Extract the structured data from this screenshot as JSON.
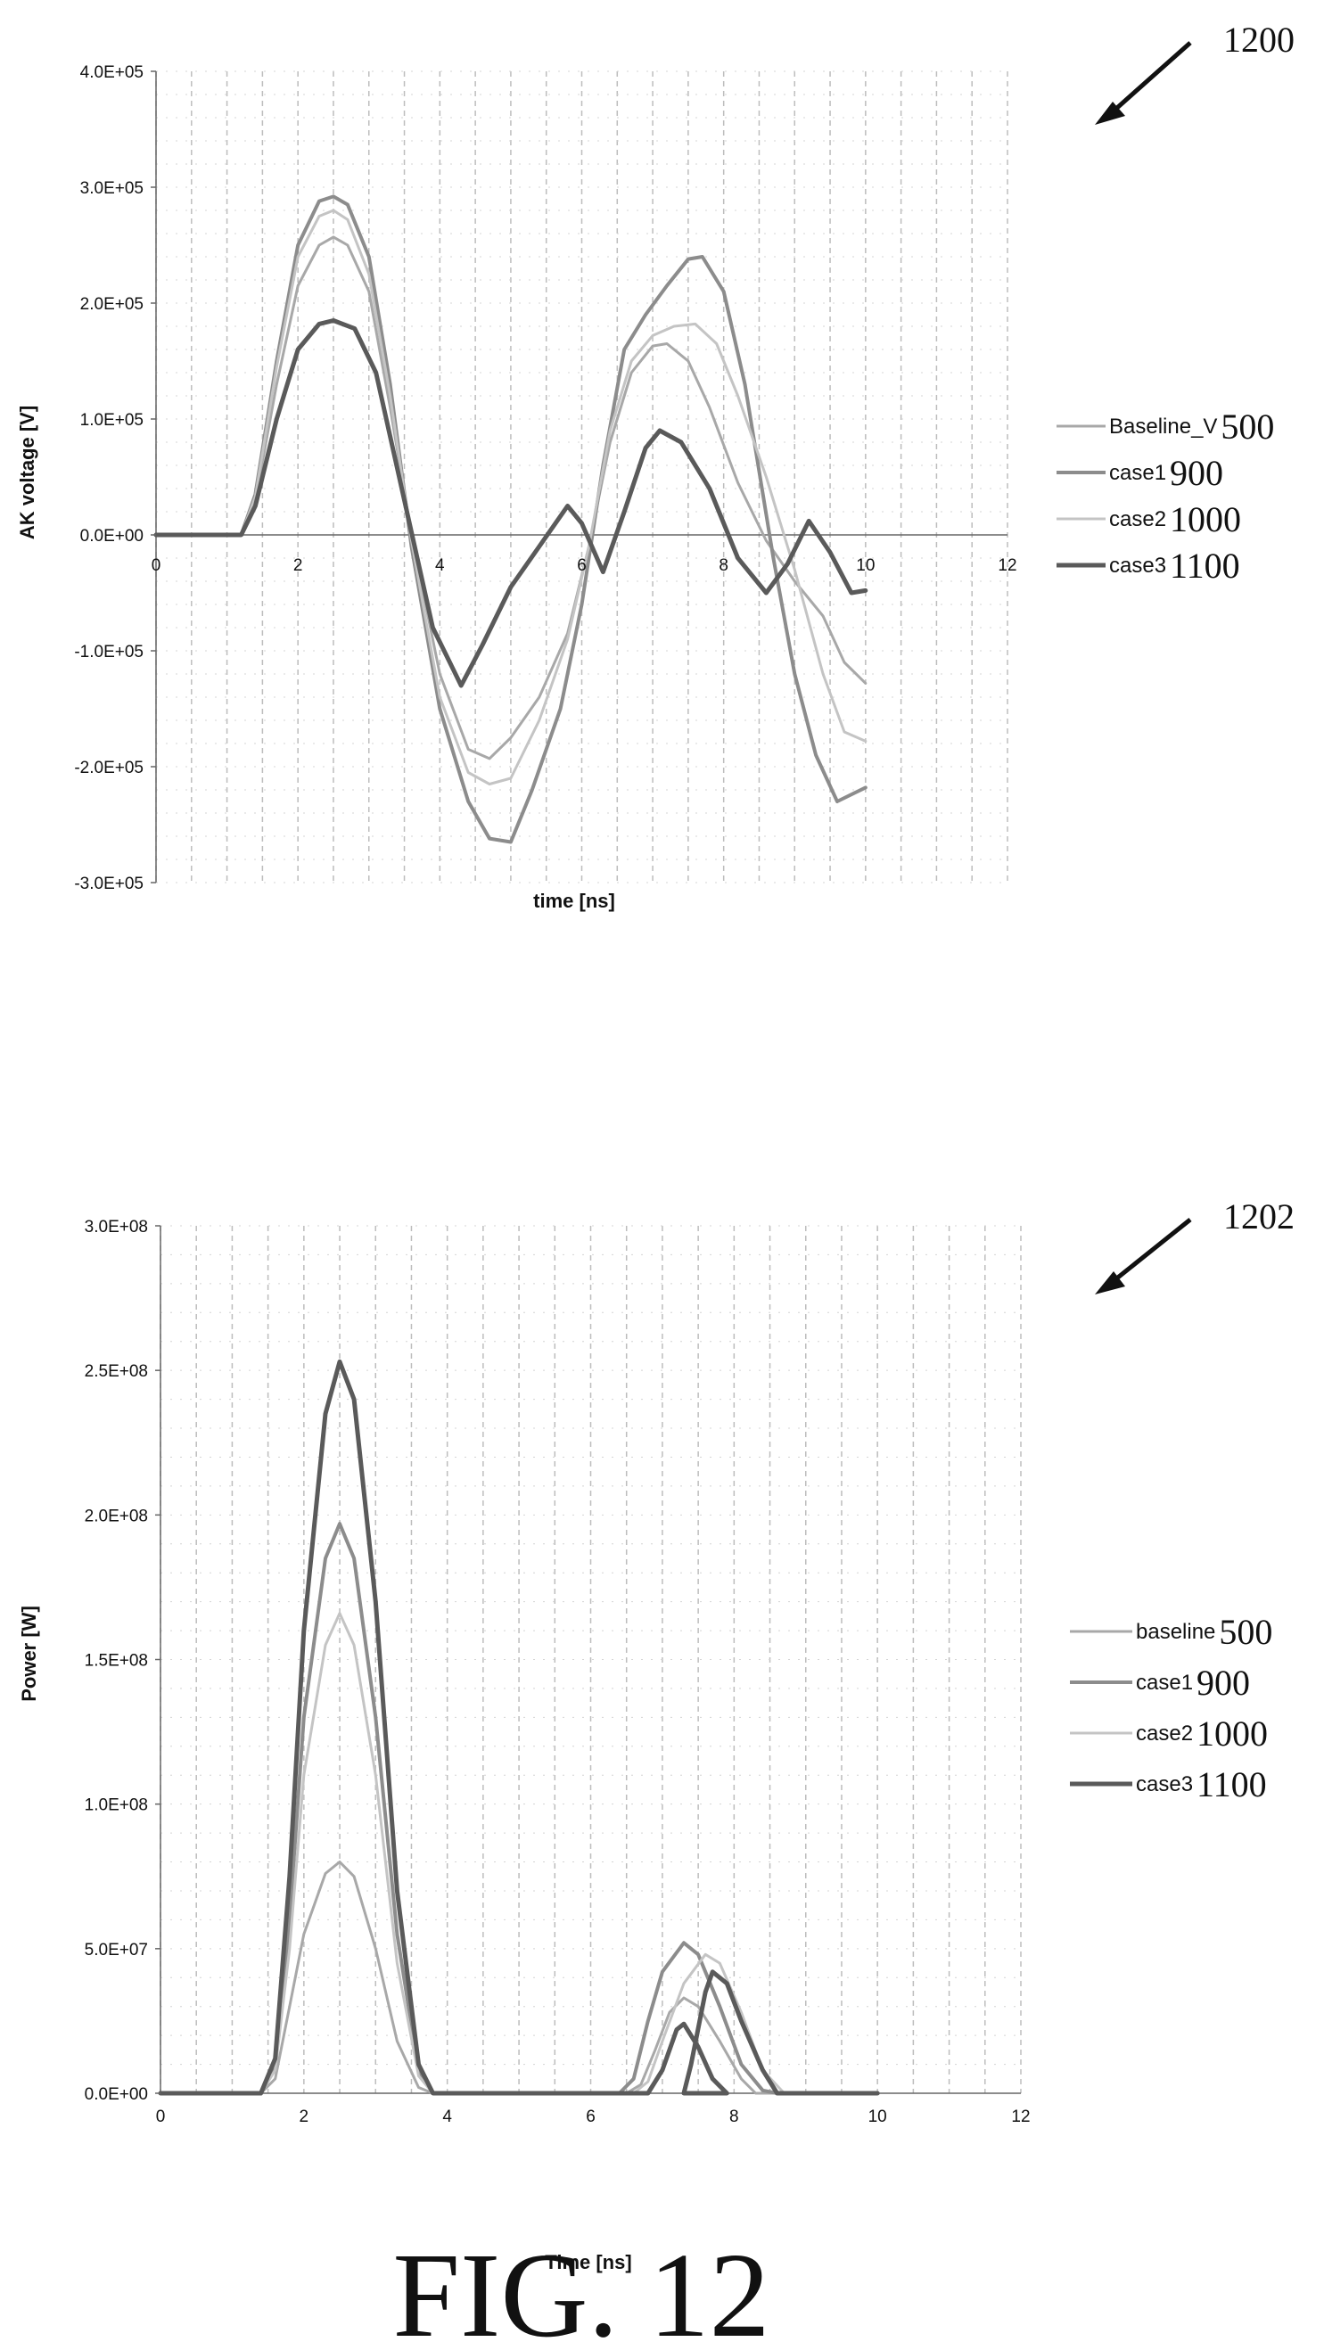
{
  "figure_label": "FIG. 12",
  "chart_data": [
    {
      "id": "top",
      "ref_number": "1200",
      "type": "line",
      "xlabel": "time [ns]",
      "ylabel": "AK voltage [V]",
      "xlim": [
        0,
        12
      ],
      "ylim": [
        -300000,
        400000
      ],
      "xticks": [
        0,
        2,
        4,
        6,
        8,
        10,
        12
      ],
      "xtick_labels": [
        "0",
        "2",
        "4",
        "6",
        "8",
        "10",
        "12"
      ],
      "yticks": [
        400000,
        300000,
        200000,
        100000,
        0,
        -100000,
        -200000,
        -300000
      ],
      "ytick_labels": [
        "4.0E+05",
        "3.0E+05",
        "2.0E+05",
        "1.0E+05",
        "0.0E+00",
        "-1.0E+05",
        "-2.0E+05",
        "-3.0E+05"
      ],
      "grid": true,
      "legend_position": "right",
      "series": [
        {
          "name": "Baseline_V",
          "ref": "500",
          "color": "#a8a8a8",
          "width": 3,
          "points": [
            [
              0,
              0
            ],
            [
              1.2,
              0
            ],
            [
              1.4,
              30000
            ],
            [
              1.7,
              130000
            ],
            [
              2.0,
              215000
            ],
            [
              2.3,
              250000
            ],
            [
              2.5,
              257000
            ],
            [
              2.7,
              250000
            ],
            [
              3.0,
              210000
            ],
            [
              3.3,
              110000
            ],
            [
              3.6,
              0
            ],
            [
              4.0,
              -120000
            ],
            [
              4.4,
              -185000
            ],
            [
              4.7,
              -193000
            ],
            [
              5.0,
              -175000
            ],
            [
              5.4,
              -140000
            ],
            [
              5.8,
              -85000
            ],
            [
              6.1,
              -10000
            ],
            [
              6.4,
              80000
            ],
            [
              6.7,
              140000
            ],
            [
              7.0,
              163000
            ],
            [
              7.2,
              165000
            ],
            [
              7.5,
              150000
            ],
            [
              7.8,
              110000
            ],
            [
              8.2,
              45000
            ],
            [
              8.6,
              -5000
            ],
            [
              9.0,
              -40000
            ],
            [
              9.4,
              -70000
            ],
            [
              9.7,
              -110000
            ],
            [
              10,
              -128000
            ]
          ]
        },
        {
          "name": "case1",
          "ref": "900",
          "color": "#8c8c8c",
          "width": 4,
          "points": [
            [
              0,
              0
            ],
            [
              1.2,
              0
            ],
            [
              1.4,
              35000
            ],
            [
              1.7,
              150000
            ],
            [
              2.0,
              250000
            ],
            [
              2.3,
              288000
            ],
            [
              2.5,
              292000
            ],
            [
              2.7,
              285000
            ],
            [
              3.0,
              240000
            ],
            [
              3.3,
              130000
            ],
            [
              3.6,
              -10000
            ],
            [
              4.0,
              -150000
            ],
            [
              4.4,
              -230000
            ],
            [
              4.7,
              -262000
            ],
            [
              5.0,
              -265000
            ],
            [
              5.3,
              -220000
            ],
            [
              5.7,
              -150000
            ],
            [
              6.0,
              -60000
            ],
            [
              6.3,
              60000
            ],
            [
              6.6,
              160000
            ],
            [
              6.9,
              190000
            ],
            [
              7.2,
              215000
            ],
            [
              7.5,
              238000
            ],
            [
              7.7,
              240000
            ],
            [
              8.0,
              210000
            ],
            [
              8.3,
              130000
            ],
            [
              8.7,
              -20000
            ],
            [
              9.0,
              -120000
            ],
            [
              9.3,
              -190000
            ],
            [
              9.6,
              -230000
            ],
            [
              10,
              -218000
            ]
          ]
        },
        {
          "name": "case2",
          "ref": "1000",
          "color": "#c4c4c4",
          "width": 3,
          "points": [
            [
              0,
              0
            ],
            [
              1.2,
              0
            ],
            [
              1.4,
              33000
            ],
            [
              1.7,
              145000
            ],
            [
              2.0,
              240000
            ],
            [
              2.3,
              275000
            ],
            [
              2.5,
              280000
            ],
            [
              2.7,
              272000
            ],
            [
              3.0,
              225000
            ],
            [
              3.3,
              120000
            ],
            [
              3.6,
              -5000
            ],
            [
              4.0,
              -140000
            ],
            [
              4.4,
              -205000
            ],
            [
              4.7,
              -215000
            ],
            [
              5.0,
              -210000
            ],
            [
              5.4,
              -160000
            ],
            [
              5.8,
              -90000
            ],
            [
              6.1,
              -10000
            ],
            [
              6.4,
              90000
            ],
            [
              6.7,
              150000
            ],
            [
              7.0,
              172000
            ],
            [
              7.3,
              180000
            ],
            [
              7.6,
              182000
            ],
            [
              7.9,
              165000
            ],
            [
              8.2,
              120000
            ],
            [
              8.6,
              50000
            ],
            [
              9.0,
              -30000
            ],
            [
              9.4,
              -120000
            ],
            [
              9.7,
              -170000
            ],
            [
              10,
              -178000
            ]
          ]
        },
        {
          "name": "case3",
          "ref": "1100",
          "color": "#5a5a5a",
          "width": 5,
          "points": [
            [
              0,
              0
            ],
            [
              1.2,
              0
            ],
            [
              1.4,
              25000
            ],
            [
              1.7,
              100000
            ],
            [
              2.0,
              160000
            ],
            [
              2.3,
              182000
            ],
            [
              2.5,
              185000
            ],
            [
              2.8,
              178000
            ],
            [
              3.1,
              140000
            ],
            [
              3.5,
              30000
            ],
            [
              3.9,
              -80000
            ],
            [
              4.3,
              -130000
            ],
            [
              4.6,
              -95000
            ],
            [
              5.0,
              -45000
            ],
            [
              5.4,
              -10000
            ],
            [
              5.8,
              25000
            ],
            [
              6.0,
              10000
            ],
            [
              6.3,
              -32000
            ],
            [
              6.6,
              20000
            ],
            [
              6.9,
              75000
            ],
            [
              7.1,
              90000
            ],
            [
              7.4,
              80000
            ],
            [
              7.8,
              40000
            ],
            [
              8.2,
              -20000
            ],
            [
              8.6,
              -50000
            ],
            [
              8.9,
              -25000
            ],
            [
              9.2,
              12000
            ],
            [
              9.5,
              -15000
            ],
            [
              9.8,
              -50000
            ],
            [
              10,
              -48000
            ]
          ]
        }
      ]
    },
    {
      "id": "bottom",
      "ref_number": "1202",
      "type": "line",
      "xlabel": "Time [ns]",
      "ylabel": "Power [W]",
      "xlim": [
        0,
        12
      ],
      "ylim": [
        0,
        300000000
      ],
      "xticks": [
        0,
        2,
        4,
        6,
        8,
        10,
        12
      ],
      "xtick_labels": [
        "0",
        "2",
        "4",
        "6",
        "8",
        "10",
        "12"
      ],
      "yticks": [
        300000000,
        250000000,
        200000000,
        150000000,
        100000000,
        50000000,
        0
      ],
      "ytick_labels": [
        "3.0E+08",
        "2.5E+08",
        "2.0E+08",
        "1.5E+08",
        "1.0E+08",
        "5.0E+07",
        "0.0E+00"
      ],
      "grid": true,
      "legend_position": "right",
      "series": [
        {
          "name": "baseline",
          "ref": "500",
          "color": "#a8a8a8",
          "width": 3,
          "points": [
            [
              0,
              0
            ],
            [
              1.4,
              0
            ],
            [
              1.6,
              5000000
            ],
            [
              1.8,
              30000000
            ],
            [
              2.0,
              55000000
            ],
            [
              2.3,
              76000000
            ],
            [
              2.5,
              80000000
            ],
            [
              2.7,
              75000000
            ],
            [
              3.0,
              50000000
            ],
            [
              3.3,
              18000000
            ],
            [
              3.6,
              2000000
            ],
            [
              3.8,
              0
            ],
            [
              6.5,
              0
            ],
            [
              6.7,
              3000000
            ],
            [
              6.9,
              15000000
            ],
            [
              7.1,
              28000000
            ],
            [
              7.3,
              33000000
            ],
            [
              7.5,
              30000000
            ],
            [
              7.8,
              18000000
            ],
            [
              8.1,
              5000000
            ],
            [
              8.3,
              0
            ],
            [
              10,
              0
            ]
          ]
        },
        {
          "name": "case1",
          "ref": "900",
          "color": "#8c8c8c",
          "width": 4,
          "points": [
            [
              0,
              0
            ],
            [
              1.4,
              0
            ],
            [
              1.6,
              10000000
            ],
            [
              1.8,
              60000000
            ],
            [
              2.0,
              130000000
            ],
            [
              2.3,
              185000000
            ],
            [
              2.5,
              197000000
            ],
            [
              2.7,
              185000000
            ],
            [
              3.0,
              130000000
            ],
            [
              3.3,
              55000000
            ],
            [
              3.6,
              8000000
            ],
            [
              3.8,
              0
            ],
            [
              6.4,
              0
            ],
            [
              6.6,
              5000000
            ],
            [
              6.8,
              25000000
            ],
            [
              7.0,
              42000000
            ],
            [
              7.3,
              52000000
            ],
            [
              7.5,
              48000000
            ],
            [
              7.8,
              30000000
            ],
            [
              8.1,
              10000000
            ],
            [
              8.4,
              1000000
            ],
            [
              8.6,
              0
            ],
            [
              10,
              0
            ]
          ]
        },
        {
          "name": "case2",
          "ref": "1000",
          "color": "#c4c4c4",
          "width": 3,
          "points": [
            [
              0,
              0
            ],
            [
              1.4,
              0
            ],
            [
              1.6,
              8000000
            ],
            [
              1.8,
              50000000
            ],
            [
              2.0,
              110000000
            ],
            [
              2.3,
              155000000
            ],
            [
              2.5,
              166000000
            ],
            [
              2.7,
              155000000
            ],
            [
              3.0,
              110000000
            ],
            [
              3.3,
              45000000
            ],
            [
              3.6,
              6000000
            ],
            [
              3.8,
              0
            ],
            [
              6.6,
              0
            ],
            [
              6.8,
              4000000
            ],
            [
              7.0,
              18000000
            ],
            [
              7.3,
              38000000
            ],
            [
              7.6,
              48000000
            ],
            [
              7.8,
              45000000
            ],
            [
              8.1,
              28000000
            ],
            [
              8.4,
              8000000
            ],
            [
              8.7,
              0
            ],
            [
              10,
              0
            ]
          ]
        },
        {
          "name": "case3",
          "ref": "1100",
          "color": "#5a5a5a",
          "width": 5,
          "points": [
            [
              0,
              0
            ],
            [
              1.4,
              0
            ],
            [
              1.6,
              12000000
            ],
            [
              1.8,
              75000000
            ],
            [
              2.0,
              160000000
            ],
            [
              2.3,
              235000000
            ],
            [
              2.5,
              253000000
            ],
            [
              2.7,
              240000000
            ],
            [
              3.0,
              170000000
            ],
            [
              3.3,
              70000000
            ],
            [
              3.6,
              10000000
            ],
            [
              3.8,
              0
            ],
            [
              6.8,
              0
            ],
            [
              7.0,
              8000000
            ],
            [
              7.2,
              22000000
            ],
            [
              7.3,
              24000000
            ],
            [
              7.5,
              16000000
            ],
            [
              7.7,
              5000000
            ],
            [
              7.9,
              0
            ],
            [
              7.3,
              0
            ],
            [
              7.4,
              10000000
            ],
            [
              7.6,
              35000000
            ],
            [
              7.7,
              42000000
            ],
            [
              7.9,
              38000000
            ],
            [
              8.1,
              25000000
            ],
            [
              8.4,
              8000000
            ],
            [
              8.6,
              0
            ],
            [
              10,
              0
            ]
          ]
        }
      ]
    }
  ]
}
